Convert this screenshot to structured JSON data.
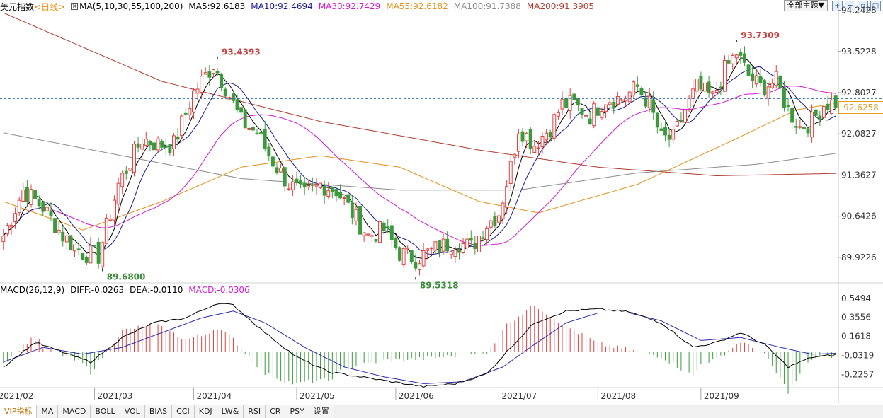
{
  "legend": {
    "title": "美元指数",
    "period": "<日线>",
    "ma_label": "MA(5,10,30,55,100,200)",
    "ma5": "MA5:92.6183",
    "ma10": "MA10:92.4694",
    "ma30": "MA30:92.7429",
    "ma55": "MA55:92.6182",
    "ma100": "MA100:91.7388",
    "ma200": "MA200:91.3905"
  },
  "toolbar": {
    "theme": "全部主题▼"
  },
  "macd_legend": {
    "label": "MACD(26,12,9)",
    "diff": "DIFF:-0.0263",
    "dea": "DEA:-0.0110",
    "macd": "MACD:-0.0306"
  },
  "current_price": "92.6258",
  "tabs": [
    "VIP指标",
    "MA",
    "MACD",
    "BOLL",
    "VOL",
    "BIAS",
    "CCI",
    "KDJ",
    "LW&",
    "RSI",
    "CR",
    "PSY",
    "设置"
  ],
  "colors": {
    "up": "#e04040",
    "down": "#3c9a3c",
    "ma5": "#000000",
    "ma10": "#1a1a8c",
    "ma30": "#d21ad2",
    "ma55": "#e5901a",
    "ma100": "#8c8c8c",
    "ma200": "#b03a2e",
    "dea": "#2a2ab0",
    "diff": "#000000"
  },
  "chart_data": [
    {
      "type": "candlestick",
      "title": "美元指数 日线",
      "x_tick_labels": [
        "2021/02",
        "2021/03",
        "2021/04",
        "2021/05",
        "2021/06",
        "2021/07",
        "2021/08",
        "2021/09"
      ],
      "y_tick_labels": [
        "94.2428",
        "93.5228",
        "92.8027",
        "92.0827",
        "91.3627",
        "90.6426",
        "89.9226"
      ],
      "ylim": [
        89.5,
        94.3
      ],
      "annotations": [
        {
          "label": "93.4393",
          "value": 93.4393,
          "kind": "high"
        },
        {
          "label": "89.6800",
          "value": 89.68,
          "kind": "low"
        },
        {
          "label": "89.5318",
          "value": 89.5318,
          "kind": "low"
        },
        {
          "label": "93.7309",
          "value": 93.7309,
          "kind": "high"
        }
      ],
      "key_closes": [
        [
          0,
          90.3
        ],
        [
          5,
          91.1
        ],
        [
          10,
          90.8
        ],
        [
          15,
          90.3
        ],
        [
          20,
          90.0
        ],
        [
          24,
          89.95
        ],
        [
          29,
          91.2
        ],
        [
          35,
          92.0
        ],
        [
          39,
          91.9
        ],
        [
          43,
          91.9
        ],
        [
          48,
          92.8
        ],
        [
          53,
          93.3
        ],
        [
          56,
          92.9
        ],
        [
          60,
          92.3
        ],
        [
          64,
          92.1
        ],
        [
          68,
          91.6
        ],
        [
          72,
          91.2
        ],
        [
          76,
          91.0
        ],
        [
          80,
          91.2
        ],
        [
          84,
          91.1
        ],
        [
          88,
          90.7
        ],
        [
          92,
          90.3
        ],
        [
          96,
          90.4
        ],
        [
          100,
          90.0
        ],
        [
          104,
          89.9
        ],
        [
          107,
          90.0
        ],
        [
          110,
          90.1
        ],
        [
          114,
          90.2
        ],
        [
          118,
          90.1
        ],
        [
          122,
          90.5
        ],
        [
          125,
          90.7
        ],
        [
          128,
          91.5
        ],
        [
          130,
          92.2
        ],
        [
          134,
          91.9
        ],
        [
          138,
          92.2
        ],
        [
          141,
          92.6
        ],
        [
          144,
          92.6
        ],
        [
          148,
          92.4
        ],
        [
          152,
          92.7
        ],
        [
          156,
          92.7
        ],
        [
          160,
          92.9
        ],
        [
          163,
          92.6
        ],
        [
          166,
          92.0
        ],
        [
          169,
          92.0
        ],
        [
          172,
          92.5
        ],
        [
          175,
          92.9
        ],
        [
          179,
          92.7
        ],
        [
          182,
          93.2
        ],
        [
          185,
          93.5
        ],
        [
          188,
          93.1
        ],
        [
          191,
          92.9
        ],
        [
          195,
          93.0
        ],
        [
          198,
          92.5
        ],
        [
          201,
          92.2
        ],
        [
          204,
          92.3
        ],
        [
          207,
          92.6
        ],
        [
          210,
          92.63
        ]
      ],
      "moving_averages": {
        "MA5": 92.6183,
        "MA10": 92.4694,
        "MA30": 92.7429,
        "MA55": 92.6182,
        "MA100": 91.7388,
        "MA200": 91.3905
      }
    },
    {
      "type": "macd",
      "title": "MACD(26,12,9)",
      "y_tick_labels": [
        "0.5494",
        "0.3556",
        "0.1618",
        "-0.0319",
        "-0.2257"
      ],
      "ylim": [
        -0.36,
        0.62
      ],
      "latest": {
        "DIFF": -0.0263,
        "DEA": -0.011,
        "MACD": -0.0306
      },
      "diff_key_points": [
        [
          0,
          -0.15
        ],
        [
          8,
          0.1
        ],
        [
          15,
          0.0
        ],
        [
          22,
          -0.1
        ],
        [
          30,
          0.15
        ],
        [
          38,
          0.3
        ],
        [
          46,
          0.35
        ],
        [
          54,
          0.5
        ],
        [
          58,
          0.48
        ],
        [
          66,
          0.2
        ],
        [
          74,
          -0.05
        ],
        [
          82,
          -0.2
        ],
        [
          90,
          -0.25
        ],
        [
          98,
          -0.3
        ],
        [
          106,
          -0.35
        ],
        [
          114,
          -0.32
        ],
        [
          122,
          -0.22
        ],
        [
          128,
          0.05
        ],
        [
          134,
          0.3
        ],
        [
          142,
          0.42
        ],
        [
          150,
          0.44
        ],
        [
          158,
          0.41
        ],
        [
          166,
          0.3
        ],
        [
          174,
          0.05
        ],
        [
          180,
          0.1
        ],
        [
          186,
          0.2
        ],
        [
          192,
          0.08
        ],
        [
          198,
          -0.15
        ],
        [
          204,
          -0.05
        ],
        [
          210,
          -0.0263
        ]
      ],
      "dea_key_points": [
        [
          0,
          -0.1
        ],
        [
          10,
          0.05
        ],
        [
          20,
          -0.02
        ],
        [
          30,
          0.05
        ],
        [
          40,
          0.2
        ],
        [
          50,
          0.35
        ],
        [
          58,
          0.42
        ],
        [
          66,
          0.3
        ],
        [
          76,
          0.05
        ],
        [
          86,
          -0.15
        ],
        [
          96,
          -0.25
        ],
        [
          106,
          -0.32
        ],
        [
          116,
          -0.3
        ],
        [
          126,
          -0.15
        ],
        [
          134,
          0.08
        ],
        [
          142,
          0.3
        ],
        [
          150,
          0.4
        ],
        [
          158,
          0.4
        ],
        [
          166,
          0.32
        ],
        [
          176,
          0.12
        ],
        [
          186,
          0.15
        ],
        [
          196,
          0.05
        ],
        [
          204,
          -0.02
        ],
        [
          210,
          -0.011
        ]
      ]
    }
  ]
}
